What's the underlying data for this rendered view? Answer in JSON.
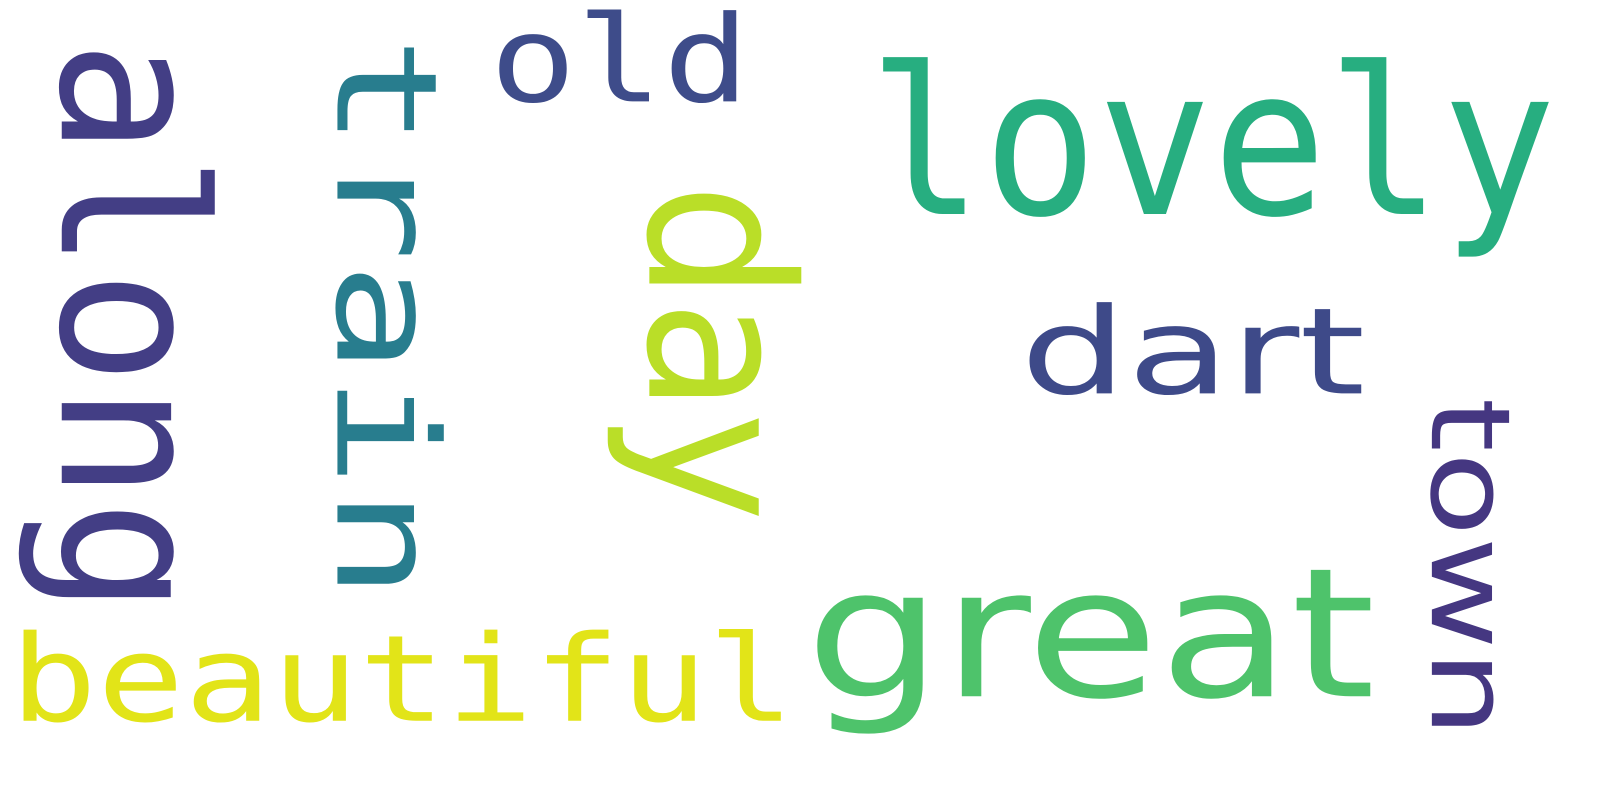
{
  "words": [
    {
      "text": "lovely",
      "color": "#27ae80",
      "rotated": false,
      "font": "mono"
    },
    {
      "text": "great",
      "color": "#4ec36b",
      "rotated": false,
      "font": "sans"
    },
    {
      "text": "beautiful",
      "color": "#e2e418",
      "rotated": false,
      "font": "mono"
    },
    {
      "text": "day",
      "color": "#bade28",
      "rotated": true,
      "font": "sans"
    },
    {
      "text": "train",
      "color": "#287d8e",
      "rotated": true,
      "font": "mono"
    },
    {
      "text": "along",
      "color": "#433e85",
      "rotated": true,
      "font": "mono"
    },
    {
      "text": "old",
      "color": "#3e4c8a",
      "rotated": false,
      "font": "mono"
    },
    {
      "text": "dart",
      "color": "#3e4a89",
      "rotated": false,
      "font": "sans"
    },
    {
      "text": "town",
      "color": "#453781",
      "rotated": true,
      "font": "sans"
    }
  ]
}
